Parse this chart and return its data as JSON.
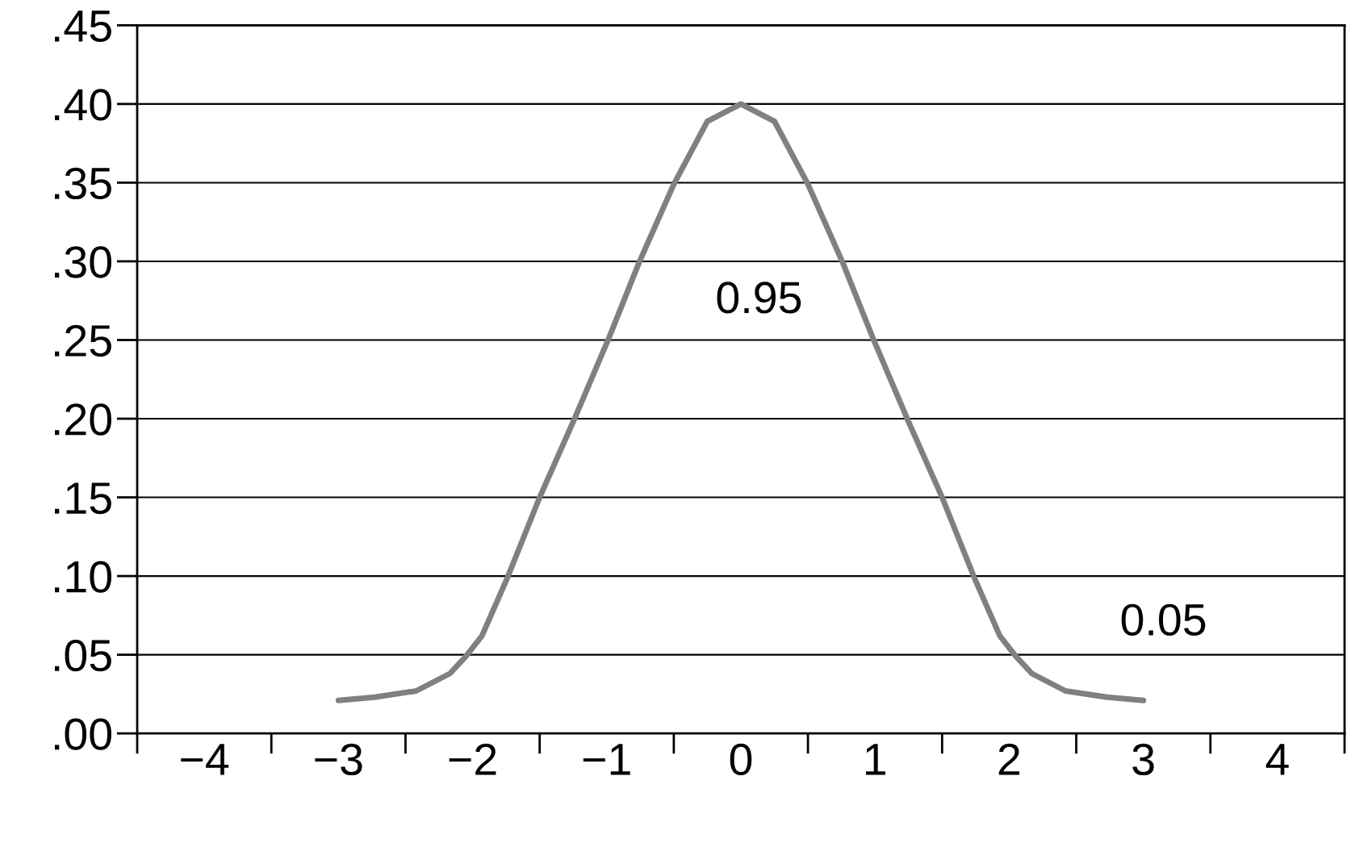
{
  "chart_data": {
    "type": "line",
    "x": [
      -3.0,
      -2.73,
      -2.42,
      -2.17,
      -2.05,
      -1.93,
      -1.74,
      -1.5,
      -1.24,
      -0.99,
      -0.76,
      -0.5,
      -0.25,
      0,
      0.25,
      0.5,
      0.76,
      0.99,
      1.24,
      1.5,
      1.74,
      1.93,
      2.05,
      2.17,
      2.42,
      2.73,
      3.0
    ],
    "series": [
      {
        "color": "#808080",
        "values": [
          0.021,
          0.023,
          0.027,
          0.038,
          0.049,
          0.062,
          0.099,
          0.15,
          0.2,
          0.25,
          0.299,
          0.349,
          0.389,
          0.4,
          0.389,
          0.349,
          0.299,
          0.25,
          0.2,
          0.15,
          0.099,
          0.062,
          0.049,
          0.038,
          0.027,
          0.023,
          0.021
        ]
      }
    ],
    "xlim": [
      -4.5,
      4.5
    ],
    "xticks": [
      {
        "value": -4,
        "label": "−4"
      },
      {
        "value": -3,
        "label": "−3"
      },
      {
        "value": -2,
        "label": "−2"
      },
      {
        "value": -1,
        "label": "−1"
      },
      {
        "value": 0,
        "label": "0"
      },
      {
        "value": 1,
        "label": "1"
      },
      {
        "value": 2,
        "label": "2"
      },
      {
        "value": 3,
        "label": "3"
      },
      {
        "value": 4,
        "label": "4"
      }
    ],
    "ylim": [
      0,
      0.45
    ],
    "yticks": [
      {
        "value": 0,
        "label": ".00"
      },
      {
        "value": 0.05,
        "label": ".05"
      },
      {
        "value": 0.1,
        "label": ".10"
      },
      {
        "value": 0.15,
        "label": ".15"
      },
      {
        "value": 0.2,
        "label": ".20"
      },
      {
        "value": 0.25,
        "label": ".25"
      },
      {
        "value": 0.3,
        "label": ".30"
      },
      {
        "value": 0.35,
        "label": ".35"
      },
      {
        "value": 0.4,
        "label": ".40"
      },
      {
        "value": 0.45,
        "label": ".45"
      }
    ],
    "grid": "y",
    "marker": "none",
    "line_style": "solid",
    "annotations": [
      "0.95",
      "0.05"
    ]
  }
}
